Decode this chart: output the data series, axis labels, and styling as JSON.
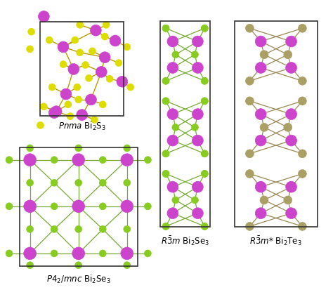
{
  "bg_color": "#ffffff",
  "bi_color": "#cc44cc",
  "s_color": "#dddd00",
  "se_color": "#88cc22",
  "te_color": "#aaa066",
  "bond_s_color": "#bb9900",
  "bond_se_color": "#77aa33",
  "bond_te_color": "#998855"
}
